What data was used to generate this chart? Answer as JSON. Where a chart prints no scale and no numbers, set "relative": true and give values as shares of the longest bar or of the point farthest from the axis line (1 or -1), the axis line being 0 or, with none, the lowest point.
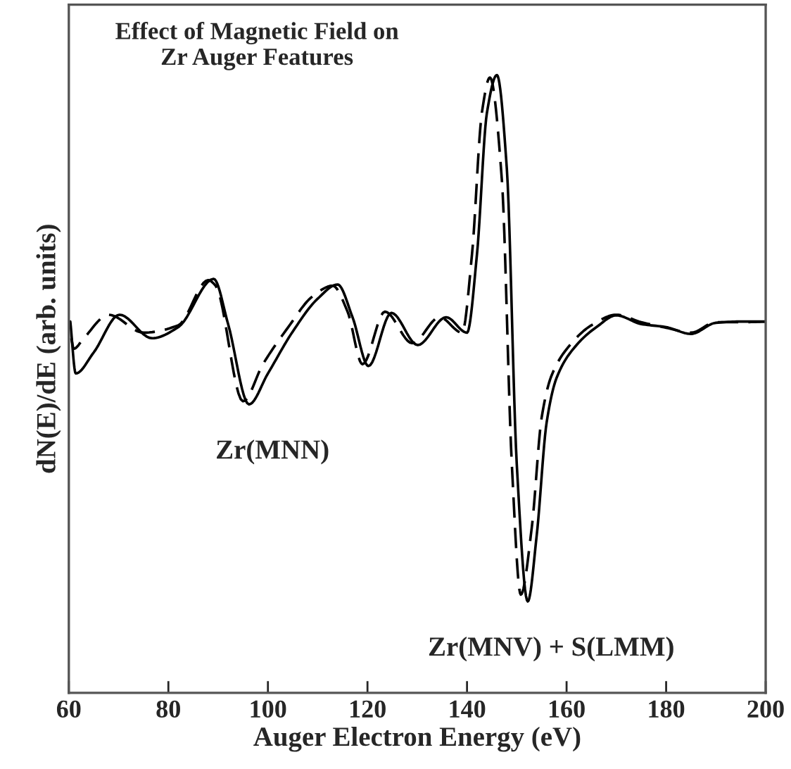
{
  "chart_data": {
    "type": "line",
    "relative": true,
    "title": "Effect of Magnetic Field on\nZr Auger Features",
    "xlabel": "Auger Electron Energy (eV)",
    "ylabel": "dN(E)/dE (arb. units)",
    "xlim": [
      60,
      200
    ],
    "xticks": [
      60,
      80,
      100,
      120,
      140,
      160,
      180,
      200
    ],
    "tick_labels": "x",
    "grid": false,
    "legend": false,
    "series": [
      {
        "color": "#000000",
        "line_style": "solid",
        "x": [
          60.3,
          61.4,
          65,
          70.2,
          76.7,
          82,
          89.1,
          92,
          96.2,
          100,
          105,
          110,
          114,
          117,
          120.2,
          124.8,
          130.1,
          135.8,
          140,
          142,
          144,
          146,
          148,
          150,
          152.2,
          154,
          156,
          158,
          162,
          166,
          170,
          175,
          180,
          185,
          190,
          195,
          200
        ],
        "values": [
          0.601,
          0.517,
          0.551,
          0.612,
          0.574,
          0.592,
          0.67,
          0.597,
          0.467,
          0.517,
          0.585,
          0.638,
          0.661,
          0.608,
          0.529,
          0.615,
          0.563,
          0.608,
          0.583,
          0.71,
          0.939,
          1,
          0.848,
          0.369,
          0.148,
          0.255,
          0.438,
          0.51,
          0.563,
          0.592,
          0.611,
          0.597,
          0.592,
          0.581,
          0.599,
          0.601,
          0.601
        ]
      },
      {
        "color": "#000000",
        "line_style": "dashed",
        "x": [
          60.5,
          61,
          63,
          68,
          75,
          82,
          88,
          89.5,
          95,
          99,
          104,
          109,
          113,
          116,
          119,
          123.5,
          129,
          134.5,
          139,
          141,
          143,
          144.6,
          147,
          149,
          150.8,
          153,
          155,
          157,
          161,
          165,
          170,
          175,
          180,
          185,
          190,
          195,
          200
        ],
        "values": [
          0.574,
          0.557,
          0.574,
          0.612,
          0.583,
          0.595,
          0.668,
          0.659,
          0.472,
          0.532,
          0.591,
          0.642,
          0.659,
          0.617,
          0.532,
          0.617,
          0.566,
          0.608,
          0.583,
          0.71,
          0.94,
          0.996,
          0.83,
          0.37,
          0.159,
          0.267,
          0.446,
          0.514,
          0.566,
          0.595,
          0.612,
          0.6,
          0.591,
          0.583,
          0.6,
          0.6,
          0.601
        ]
      }
    ],
    "annotations": [
      {
        "text": "Zr(MNN)",
        "x": 96.2,
        "y": 0.467
      },
      {
        "text": "Zr(MNV) + S(LMM)",
        "x": 152.2,
        "y": 0.148
      }
    ]
  }
}
